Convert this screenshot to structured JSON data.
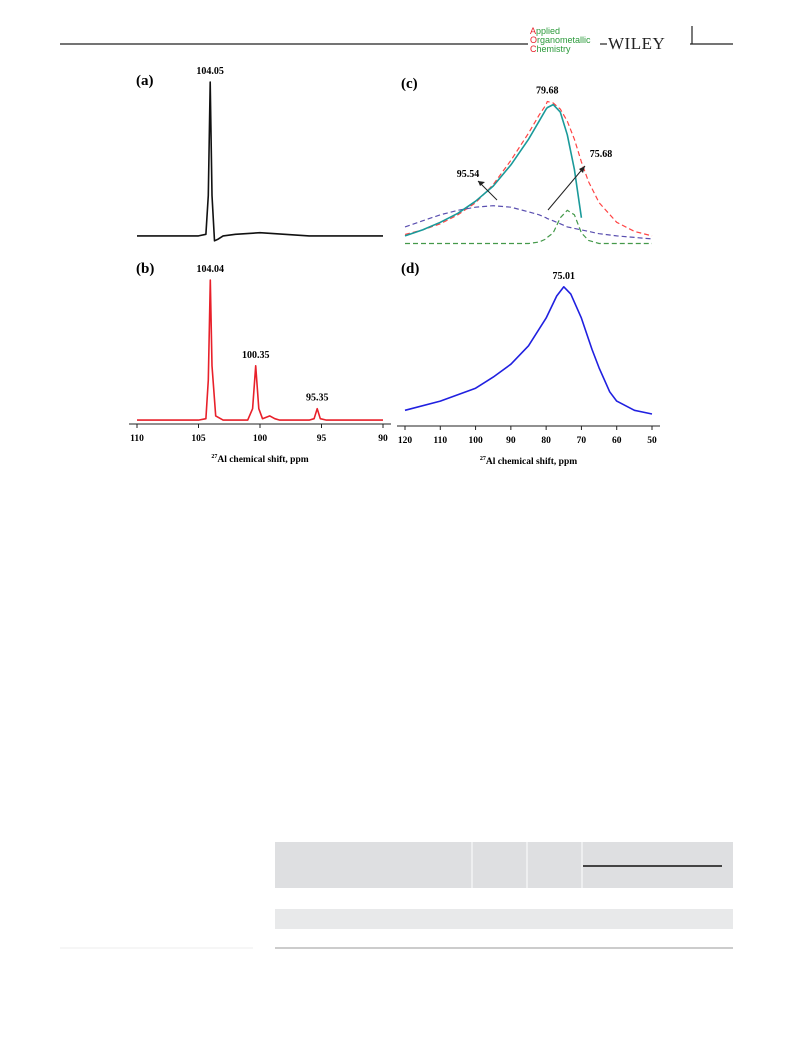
{
  "header": {
    "journal": [
      "Applied",
      "Organometallic",
      "Chemistry"
    ],
    "publisher": "WILEY"
  },
  "figure": {
    "panels": [
      {
        "label": "(a)",
        "xlim": [
          110,
          90
        ],
        "ylim": [
          0,
          100
        ],
        "peaks": [
          104.05
        ],
        "x": [
          110,
          106,
          105,
          104.4,
          104.2,
          104.05,
          103.9,
          103.7,
          103.4,
          103,
          102,
          100,
          98,
          96,
          94,
          92,
          90
        ],
        "series": [
          {
            "color": "#111111",
            "values": [
              5,
              5,
              5,
              6,
              30,
              100,
              30,
              2,
              3,
              5,
              6,
              7,
              6,
              5,
              5,
              5,
              5
            ]
          }
        ]
      },
      {
        "label": "(b)",
        "xlim": [
          110,
          90
        ],
        "ylim": [
          0,
          100
        ],
        "xticks": [
          110,
          105,
          100,
          95,
          90
        ],
        "xlabel": {
          "sup": "27",
          "text": "Al chemical shift, ppm"
        },
        "peaks": [
          104.04,
          100.35,
          95.35
        ],
        "x": [
          110,
          106,
          105,
          104.4,
          104.2,
          104.04,
          103.9,
          103.6,
          103,
          101,
          100.6,
          100.35,
          100.1,
          99.8,
          99.2,
          98.8,
          98.4,
          97,
          96,
          95.6,
          95.35,
          95.1,
          94.6,
          92,
          90
        ],
        "series": [
          {
            "color": "#e8202a",
            "values": [
              2,
              2,
              2,
              3,
              30,
              100,
              40,
              5,
              2,
              2,
              10,
              40,
              10,
              3,
              5,
              3,
              2,
              2,
              2,
              3,
              10,
              3,
              2,
              2,
              2
            ]
          }
        ]
      },
      {
        "label": "(c)",
        "xlim": [
          120,
          50
        ],
        "ylim": [
          0,
          100
        ],
        "peaks": [
          79.68,
          95.54,
          75.68
        ],
        "x": [
          120,
          115,
          110,
          105,
          100,
          95,
          90,
          85,
          82,
          80,
          79.68,
          78,
          76,
          74,
          72,
          70,
          68,
          65,
          60,
          55,
          50
        ],
        "series": [
          {
            "color": "#ff4444",
            "dash": true,
            "values": [
              9,
              12,
              16,
              22,
              30,
              42,
              58,
              76,
              88,
              95,
              97,
              96,
              92,
              84,
              72,
              57,
              44,
              30,
              17,
              11,
              8
            ]
          },
          {
            "color": "#5a4fb0",
            "dash": true,
            "values": [
              14,
              18,
              22,
              25,
              27,
              28,
              27,
              24,
              22,
              20,
              19.5,
              18,
              16,
              14,
              13,
              12,
              11,
              9.5,
              8,
              7,
              6
            ]
          },
          {
            "color": "#44994a",
            "dash": true,
            "values": [
              3,
              3,
              3,
              3,
              3,
              3,
              3,
              3,
              4,
              6,
              7,
              10,
              20,
              25,
              22,
              10,
              5,
              3,
              3,
              3,
              3
            ]
          },
          {
            "color": "#1a9a9a",
            "values": [
              8,
              12,
              17,
              23,
              31,
              41,
              55,
              72,
              84,
              92,
              93,
              95,
              90,
              75,
              52,
              20,
              null,
              null,
              null,
              null,
              null
            ]
          }
        ]
      },
      {
        "label": "(d)",
        "xlim": [
          120,
          50
        ],
        "ylim": [
          0,
          80
        ],
        "xticks": [
          120,
          110,
          100,
          90,
          80,
          70,
          60,
          50
        ],
        "xlabel": {
          "sup": "27",
          "text": "Al chemical shift, ppm"
        },
        "peaks": [
          75.01
        ],
        "x": [
          120,
          110,
          100,
          95,
          90,
          85,
          80,
          77,
          75.01,
          73,
          70,
          67,
          65,
          62,
          60,
          55,
          50
        ],
        "series": [
          {
            "color": "#2020e0",
            "values": [
              5,
              10,
              17,
              23,
              30,
              40,
              55,
              67,
              72,
              68,
              55,
              38,
              28,
              15,
              10,
              5,
              3
            ]
          }
        ]
      }
    ]
  }
}
